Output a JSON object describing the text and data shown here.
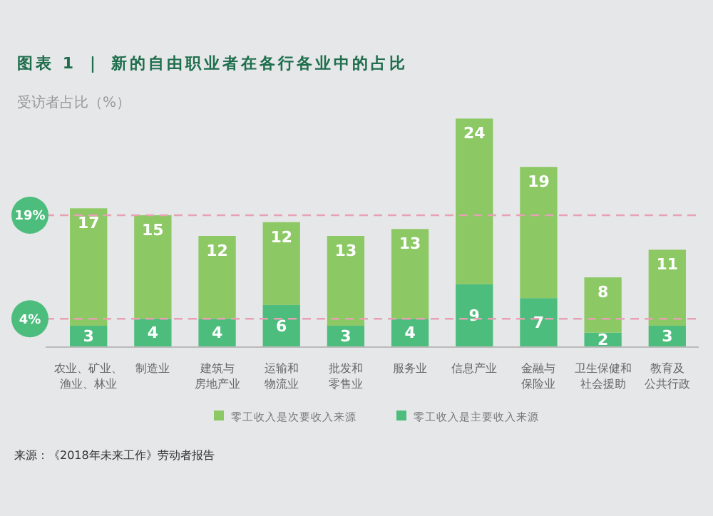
{
  "chart_data": {
    "type": "bar",
    "stacked": true,
    "title": "图表 1 ｜ 新的自由职业者在各行各业中的占比",
    "ylabel": "受访者占比（%）",
    "categories": [
      "农业、矿业、渔业、林业",
      "制造业",
      "建筑与房地产业",
      "运输和物流业",
      "批发和零售业",
      "服务业",
      "信息产业",
      "金融与保险业",
      "卫生保健和社会援助",
      "教育及公共行政"
    ],
    "series": [
      {
        "name": "零工收入是主要收入来源",
        "color": "#4cbd7c",
        "values": [
          3,
          4,
          4,
          6,
          3,
          4,
          9,
          7,
          2,
          3
        ]
      },
      {
        "name": "零工收入是次要收入来源",
        "color": "#8cc864",
        "values": [
          17,
          15,
          12,
          12,
          13,
          13,
          24,
          19,
          8,
          11
        ]
      }
    ],
    "data_labels": true,
    "legend": "bottom",
    "ref_lines": [
      {
        "axis": "y",
        "value": 19,
        "label": "19%",
        "color": "#e8a0b4",
        "line_style": "dashed"
      },
      {
        "axis": "y",
        "value": 4,
        "label": "4%",
        "color": "#e8a0b4",
        "line_style": "dashed"
      }
    ],
    "annotations": [
      "来源：《2018年未来工作》劳动者报告"
    ]
  }
}
